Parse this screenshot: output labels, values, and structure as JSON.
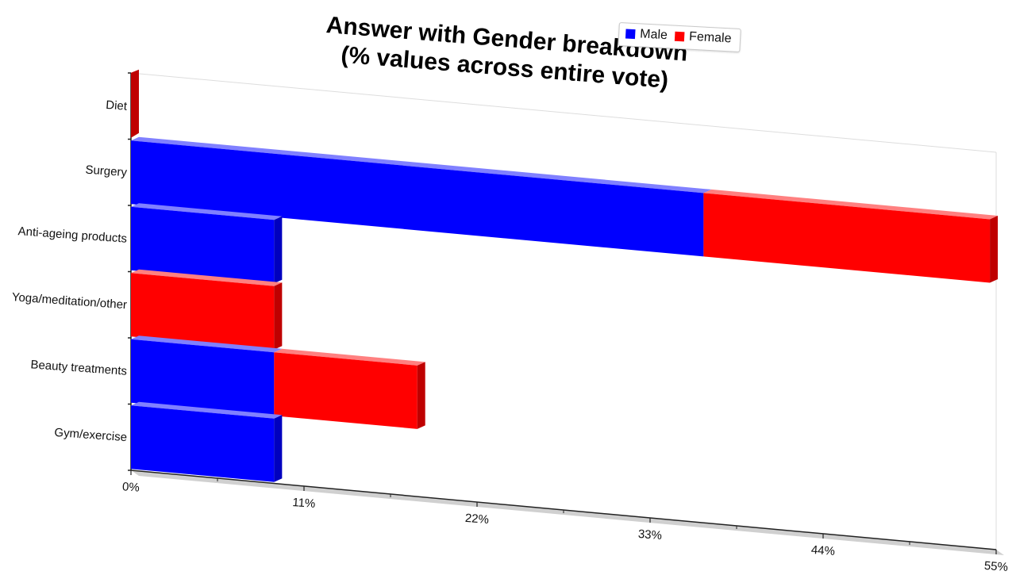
{
  "chart_data": {
    "type": "bar",
    "orientation": "horizontal",
    "stacked": true,
    "title": "Answer with Gender breakdown",
    "subtitle": "(% values across entire vote)",
    "categories": [
      "Diet",
      "Surgery",
      "Anti-ageing products",
      "Yoga/meditation/other",
      "Beauty treatments",
      "Gym/exercise"
    ],
    "series": [
      {
        "name": "Male",
        "color": "#0000ff",
        "values": [
          0,
          36.4,
          9.1,
          0,
          9.1,
          9.1
        ]
      },
      {
        "name": "Female",
        "color": "#ff0000",
        "values": [
          0,
          18.2,
          0,
          9.1,
          9.1,
          0
        ]
      }
    ],
    "xlim": [
      0,
      55
    ],
    "xticks": [
      "0%",
      "11%",
      "22%",
      "33%",
      "44%",
      "55%"
    ],
    "legend": {
      "position": "top-right",
      "entries": [
        "Male",
        "Female"
      ]
    },
    "grid": false
  }
}
